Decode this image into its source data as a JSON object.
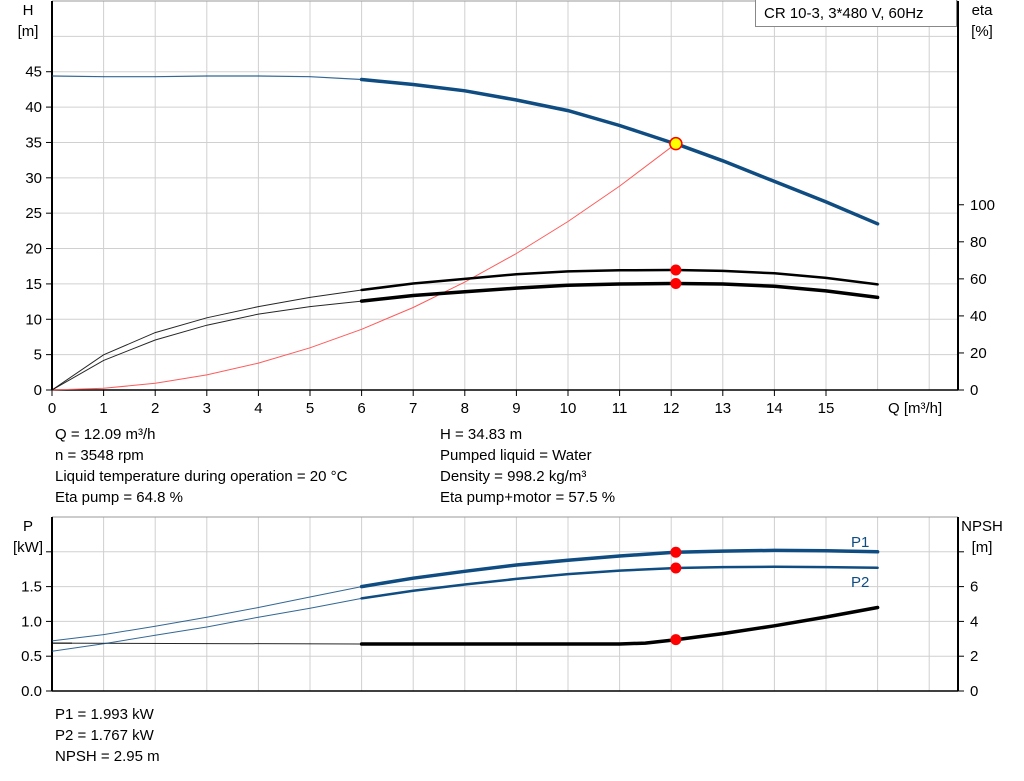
{
  "title": "CR 10-3, 3*480 V, 60Hz",
  "colors": {
    "head": "#0f4c81",
    "eta": "#000000",
    "system": "#ff5a5a",
    "power": "#0f4c81",
    "npsh": "#000000",
    "marker": "#ff0000",
    "duty_point": "#ffff00",
    "grid": "#d0d0d0"
  },
  "chart_data": [
    {
      "type": "line",
      "xlabel": "Q [m³/h]",
      "ylabel_left": [
        "H",
        "[m]"
      ],
      "ylabel_right": [
        "eta",
        "[%]"
      ],
      "xlim": [
        0,
        17.5
      ],
      "ylim_left": [
        0,
        55
      ],
      "ylim_right": [
        0,
        210
      ],
      "x_ticks": [
        0,
        1,
        2,
        3,
        4,
        5,
        6,
        7,
        8,
        9,
        10,
        11,
        12,
        13,
        14,
        15
      ],
      "y_ticks_left": [
        0,
        5,
        10,
        15,
        20,
        25,
        30,
        35,
        40,
        45
      ],
      "y_ticks_right": [
        0,
        20,
        40,
        60,
        80,
        100
      ],
      "grid": true,
      "legend": "top-right",
      "series": [
        {
          "key": "head",
          "axis": "left",
          "x": [
            0,
            1,
            2,
            3,
            4,
            5,
            6,
            7,
            8,
            9,
            10,
            11,
            12,
            12.09,
            13,
            14,
            15,
            16
          ],
          "y": [
            44.4,
            44.3,
            44.3,
            44.4,
            44.4,
            44.3,
            43.9,
            43.2,
            42.3,
            41.0,
            39.5,
            37.4,
            35.0,
            34.83,
            32.4,
            29.5,
            26.6,
            23.5
          ],
          "operating_from": 6
        },
        {
          "key": "eta_pump",
          "axis": "right",
          "x": [
            0,
            1,
            2,
            3,
            4,
            5,
            6,
            7,
            8,
            9,
            10,
            11,
            12,
            12.09,
            13,
            14,
            15,
            16
          ],
          "y": [
            0,
            19,
            31,
            39,
            45,
            50,
            54,
            57.5,
            60,
            62.5,
            64,
            64.6,
            64.8,
            64.8,
            64.3,
            63,
            60.5,
            57
          ],
          "operating_from": 6
        },
        {
          "key": "eta_pump_motor",
          "axis": "right",
          "x": [
            0,
            1,
            2,
            3,
            4,
            5,
            6,
            7,
            8,
            9,
            10,
            11,
            12,
            12.09,
            13,
            14,
            15,
            16
          ],
          "y": [
            0,
            16,
            27,
            35,
            41,
            45,
            48,
            51,
            53,
            55,
            56.5,
            57.2,
            57.5,
            57.5,
            57.2,
            56,
            53.5,
            50
          ],
          "operating_from": 6
        },
        {
          "key": "system_curve",
          "axis": "left",
          "x": [
            0,
            1,
            2,
            3,
            4,
            5,
            6,
            7,
            8,
            9,
            10,
            11,
            12.09
          ],
          "y": [
            0,
            0.24,
            0.95,
            2.14,
            3.81,
            5.96,
            8.58,
            11.67,
            15.25,
            19.3,
            23.83,
            28.83,
            34.83
          ]
        }
      ],
      "duty_point": {
        "x": 12.09,
        "H": 34.83,
        "eta_pump": 64.8,
        "eta_pump_motor": 57.5
      }
    },
    {
      "type": "line",
      "ylabel_left": [
        "P",
        "[kW]"
      ],
      "ylabel_right": [
        "NPSH",
        "[m]"
      ],
      "xlim": [
        0,
        17.5
      ],
      "ylim_left": [
        0,
        2.5
      ],
      "ylim_right": [
        0,
        10
      ],
      "y_ticks_left": [
        "0.0",
        "0.5",
        "1.0",
        "1.5",
        ""
      ],
      "y_ticks_right": [
        0,
        2,
        4,
        6,
        ""
      ],
      "grid": true,
      "series": [
        {
          "key": "P1",
          "name": "P1",
          "axis": "left",
          "x": [
            0,
            1,
            2,
            3,
            4,
            5,
            6,
            7,
            8,
            9,
            10,
            11,
            12,
            12.09,
            13,
            14,
            15,
            16
          ],
          "y": [
            0.72,
            0.81,
            0.93,
            1.06,
            1.2,
            1.35,
            1.5,
            1.62,
            1.72,
            1.81,
            1.88,
            1.94,
            1.99,
            1.993,
            2.01,
            2.02,
            2.015,
            2.0
          ],
          "operating_from": 6
        },
        {
          "key": "P2",
          "name": "P2",
          "axis": "left",
          "x": [
            0,
            1,
            2,
            3,
            4,
            5,
            6,
            7,
            8,
            9,
            10,
            11,
            12,
            12.09,
            13,
            14,
            15,
            16
          ],
          "y": [
            0.57,
            0.68,
            0.8,
            0.92,
            1.06,
            1.19,
            1.33,
            1.44,
            1.53,
            1.61,
            1.68,
            1.73,
            1.765,
            1.767,
            1.78,
            1.785,
            1.78,
            1.77
          ],
          "operating_from": 6
        },
        {
          "key": "NPSH",
          "axis": "right",
          "x": [
            0,
            6,
            8,
            10,
            11,
            11.5,
            12.09,
            13,
            14,
            15,
            16
          ],
          "y": [
            2.75,
            2.7,
            2.7,
            2.7,
            2.7,
            2.75,
            2.95,
            3.3,
            3.75,
            4.25,
            4.8
          ],
          "operating_from": 6
        }
      ]
    }
  ],
  "info_top_left": [
    "Q = 12.09 m³/h",
    "n = 3548 rpm",
    "Liquid temperature during operation = 20 °C",
    "Eta pump = 64.8 %"
  ],
  "info_top_right": [
    "H = 34.83 m",
    "Pumped liquid = Water",
    "Density = 998.2 kg/m³",
    "Eta pump+motor = 57.5 %"
  ],
  "info_bottom": [
    "P1 = 1.993 kW",
    "P2 = 1.767 kW",
    "NPSH = 2.95 m"
  ]
}
